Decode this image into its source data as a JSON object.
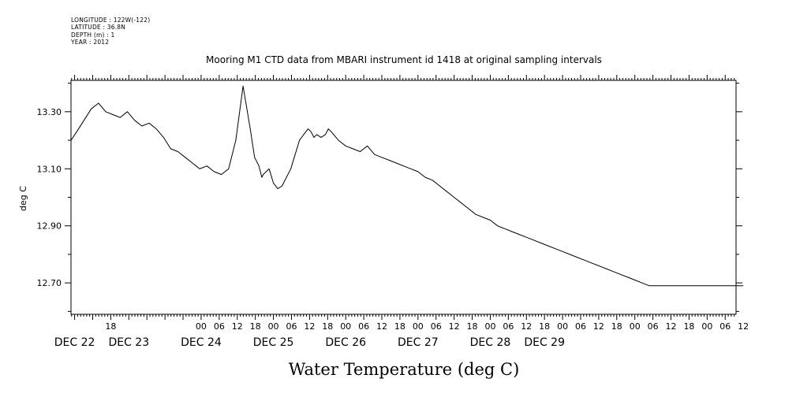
{
  "header": {
    "lines": [
      "LONGITUDE : 122W(-122)",
      "LATITUDE : 36.8N",
      "DEPTH (m) : 1",
      "YEAR : 2012"
    ]
  },
  "chart_data": {
    "type": "line",
    "title": "Mooring M1 CTD data from MBARI instrument id 1418 at original sampling intervals",
    "xlabel": "Water Temperature (deg C)",
    "ylabel": "deg C",
    "xlim": [
      -1.8,
      7.4
    ],
    "ylim": [
      12.59,
      13.41
    ],
    "yticks": [
      12.7,
      12.9,
      13.1,
      13.3
    ],
    "ytick_labels": [
      "12.70",
      "12.90",
      "13.10",
      "13.30"
    ],
    "yminor": [
      12.6,
      12.8,
      13.0,
      13.2,
      13.4
    ],
    "hour_labels": [
      {
        "x": -1.25,
        "label": "18"
      },
      {
        "x": 0.0,
        "label": "00"
      },
      {
        "x": 0.25,
        "label": "06"
      },
      {
        "x": 0.5,
        "label": "12"
      },
      {
        "x": 0.75,
        "label": "18"
      },
      {
        "x": 1.0,
        "label": "00"
      },
      {
        "x": 1.25,
        "label": "06"
      },
      {
        "x": 1.5,
        "label": "12"
      },
      {
        "x": 1.75,
        "label": "18"
      },
      {
        "x": 2.0,
        "label": "00"
      },
      {
        "x": 2.25,
        "label": "06"
      },
      {
        "x": 2.5,
        "label": "12"
      },
      {
        "x": 2.75,
        "label": "18"
      },
      {
        "x": 3.0,
        "label": "00"
      },
      {
        "x": 3.25,
        "label": "06"
      },
      {
        "x": 3.5,
        "label": "12"
      },
      {
        "x": 3.75,
        "label": "18"
      },
      {
        "x": 4.0,
        "label": "00"
      },
      {
        "x": 4.25,
        "label": "06"
      },
      {
        "x": 4.5,
        "label": "12"
      },
      {
        "x": 4.75,
        "label": "18"
      },
      {
        "x": 5.0,
        "label": "00"
      },
      {
        "x": 5.25,
        "label": "06"
      },
      {
        "x": 5.5,
        "label": "12"
      },
      {
        "x": 5.75,
        "label": "18"
      },
      {
        "x": 6.0,
        "label": "00"
      },
      {
        "x": 6.25,
        "label": "06"
      },
      {
        "x": 6.5,
        "label": "12"
      },
      {
        "x": 6.75,
        "label": "18"
      },
      {
        "x": 7.0,
        "label": "00"
      },
      {
        "x": 7.25,
        "label": "06"
      },
      {
        "x": 7.5,
        "label": "12"
      }
    ],
    "day_labels": [
      {
        "x": -1.75,
        "label": "DEC 22"
      },
      {
        "x": -1.0,
        "label": "DEC 23"
      },
      {
        "x": 0.0,
        "label": "DEC 24"
      },
      {
        "x": 1.0,
        "label": "DEC 25"
      },
      {
        "x": 2.0,
        "label": "DEC 26"
      },
      {
        "x": 3.0,
        "label": "DEC 27"
      },
      {
        "x": 4.0,
        "label": "DEC 28"
      },
      {
        "x": 4.75,
        "label": "DEC 29"
      }
    ],
    "series": [
      {
        "x": [
          -1.8,
          -1.72,
          -1.62,
          -1.52,
          -1.42,
          -1.32,
          -1.22,
          -1.12,
          -1.02,
          -0.92,
          -0.82,
          -0.72,
          -0.62,
          -0.52,
          -0.42,
          -0.32,
          -0.22,
          -0.12,
          -0.02,
          0.08,
          0.18,
          0.28,
          0.38,
          0.48,
          0.58,
          0.68,
          0.74,
          0.78,
          0.8,
          0.82,
          0.84,
          0.86,
          0.9,
          0.94,
          1.0,
          1.06,
          1.12,
          1.18,
          1.24,
          1.3,
          1.36,
          1.42,
          1.48,
          1.52,
          1.56,
          1.6,
          1.66,
          1.72,
          1.76,
          1.8,
          1.9,
          2.0,
          2.1,
          2.2,
          2.3,
          2.4,
          2.5,
          2.6,
          2.7,
          2.8,
          2.9,
          3.0,
          3.1,
          3.2,
          3.3,
          3.4,
          3.5,
          3.6,
          3.7,
          3.8,
          3.9,
          4.0,
          4.1,
          4.2,
          4.3,
          4.4,
          4.5,
          4.6,
          4.7,
          4.8,
          4.9,
          5.0,
          5.1,
          5.2,
          5.3,
          5.4,
          5.5,
          5.6,
          5.7,
          5.8,
          5.9,
          6.0,
          6.1,
          6.2,
          6.3,
          6.4,
          6.5,
          6.6,
          6.7,
          6.8,
          6.9,
          7.0,
          7.1,
          7.2,
          7.3,
          7.4,
          7.5
        ],
        "values": [
          13.2,
          13.23,
          13.27,
          13.31,
          13.33,
          13.3,
          13.29,
          13.28,
          13.3,
          13.27,
          13.25,
          13.26,
          13.24,
          13.21,
          13.17,
          13.16,
          13.14,
          13.12,
          13.1,
          13.11,
          13.09,
          13.08,
          13.1,
          13.2,
          13.39,
          13.24,
          13.14,
          13.12,
          13.11,
          13.09,
          13.07,
          13.08,
          13.09,
          13.1,
          13.05,
          13.03,
          13.04,
          13.07,
          13.1,
          13.15,
          13.2,
          13.22,
          13.24,
          13.23,
          13.21,
          13.22,
          13.21,
          13.22,
          13.24,
          13.23,
          13.2,
          13.18,
          13.17,
          13.16,
          13.18,
          13.15,
          13.14,
          13.13,
          13.12,
          13.11,
          13.1,
          13.09,
          13.07,
          13.06,
          13.04,
          13.02,
          13.0,
          12.98,
          12.96,
          12.94,
          12.93,
          12.92,
          12.9,
          12.89,
          12.88,
          12.87,
          12.86,
          12.85,
          12.84,
          12.83,
          12.82,
          12.81,
          12.8,
          12.79,
          12.78,
          12.77,
          12.76,
          12.75,
          12.74,
          12.73,
          12.72,
          12.71,
          12.7,
          12.69,
          12.69,
          12.69,
          12.69,
          12.69,
          12.69,
          12.69,
          12.69,
          12.69,
          12.69,
          12.69,
          12.69,
          12.69,
          12.69
        ]
      }
    ]
  }
}
